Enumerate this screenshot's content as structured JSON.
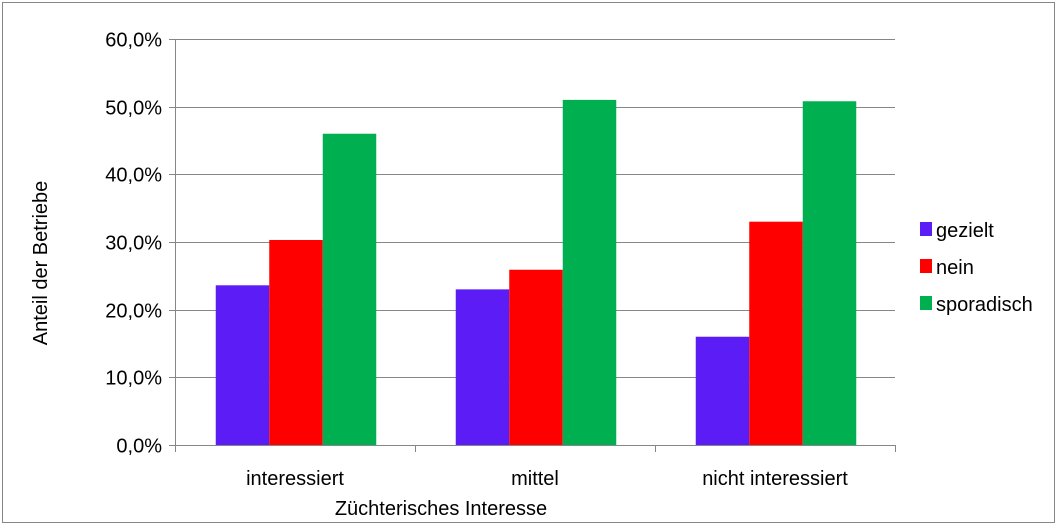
{
  "chart_data": {
    "type": "bar",
    "title": "",
    "xlabel": "Züchterisches Interesse",
    "ylabel": "Anteil der Betriebe",
    "categories": [
      "interessiert",
      "mittel",
      "nicht interessiert"
    ],
    "series": [
      {
        "name": "gezielt",
        "color": "#5b1cf6",
        "values": [
          23.6,
          23.0,
          16.0
        ]
      },
      {
        "name": "nein",
        "color": "#ff0000",
        "values": [
          30.3,
          25.9,
          33.0
        ]
      },
      {
        "name": "sporadisch",
        "color": "#00b050",
        "values": [
          46.0,
          51.0,
          50.8
        ]
      }
    ],
    "ylim": [
      0,
      60
    ],
    "yticks": [
      "0,0%",
      "10,0%",
      "20,0%",
      "30,0%",
      "40,0%",
      "50,0%",
      "60,0%"
    ],
    "grid": true,
    "legend_position": "right"
  }
}
